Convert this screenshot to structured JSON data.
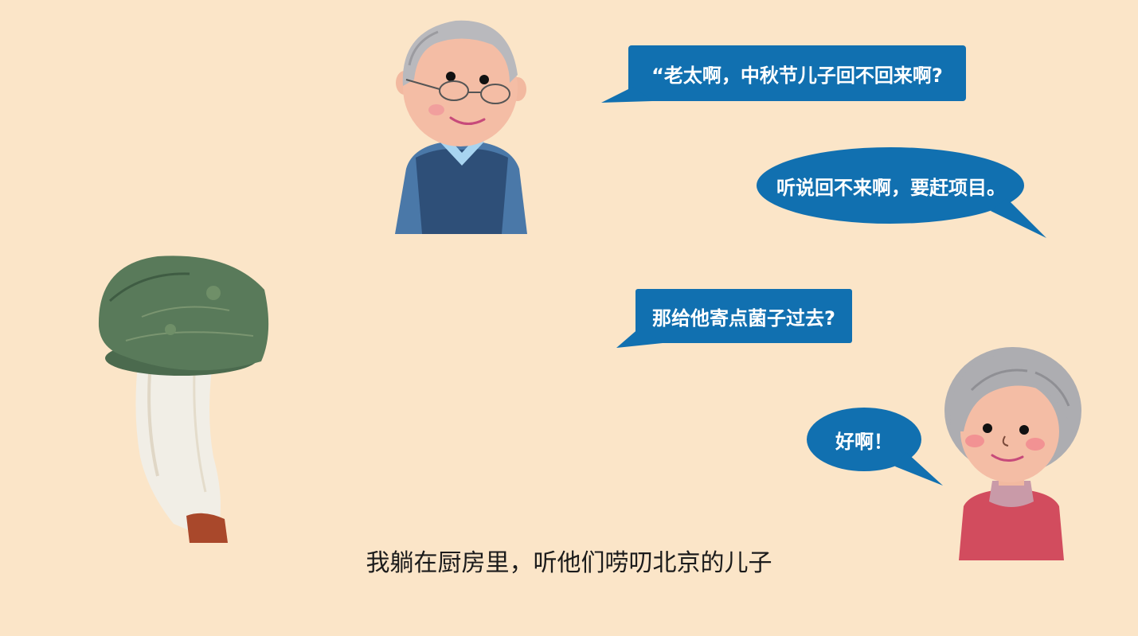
{
  "colors": {
    "background": "#fbe5c8",
    "bubble": "#1170b0",
    "bubble_text": "#ffffff",
    "caption_text": "#1b1b1b"
  },
  "icons": {
    "grandpa": "grandpa-icon",
    "grandma": "grandma-icon",
    "mushroom": "mushroom-icon"
  },
  "dialogue": {
    "grandpa_line_1": "“老太啊，中秋节儿子回不回来啊?",
    "grandma_line_1": "听说回不来啊，要赶项目。",
    "grandpa_line_2": "那给他寄点菌子过去?",
    "grandma_line_2": "好啊！"
  },
  "caption": "我躺在厨房里，听他们唠叨北京的儿子"
}
